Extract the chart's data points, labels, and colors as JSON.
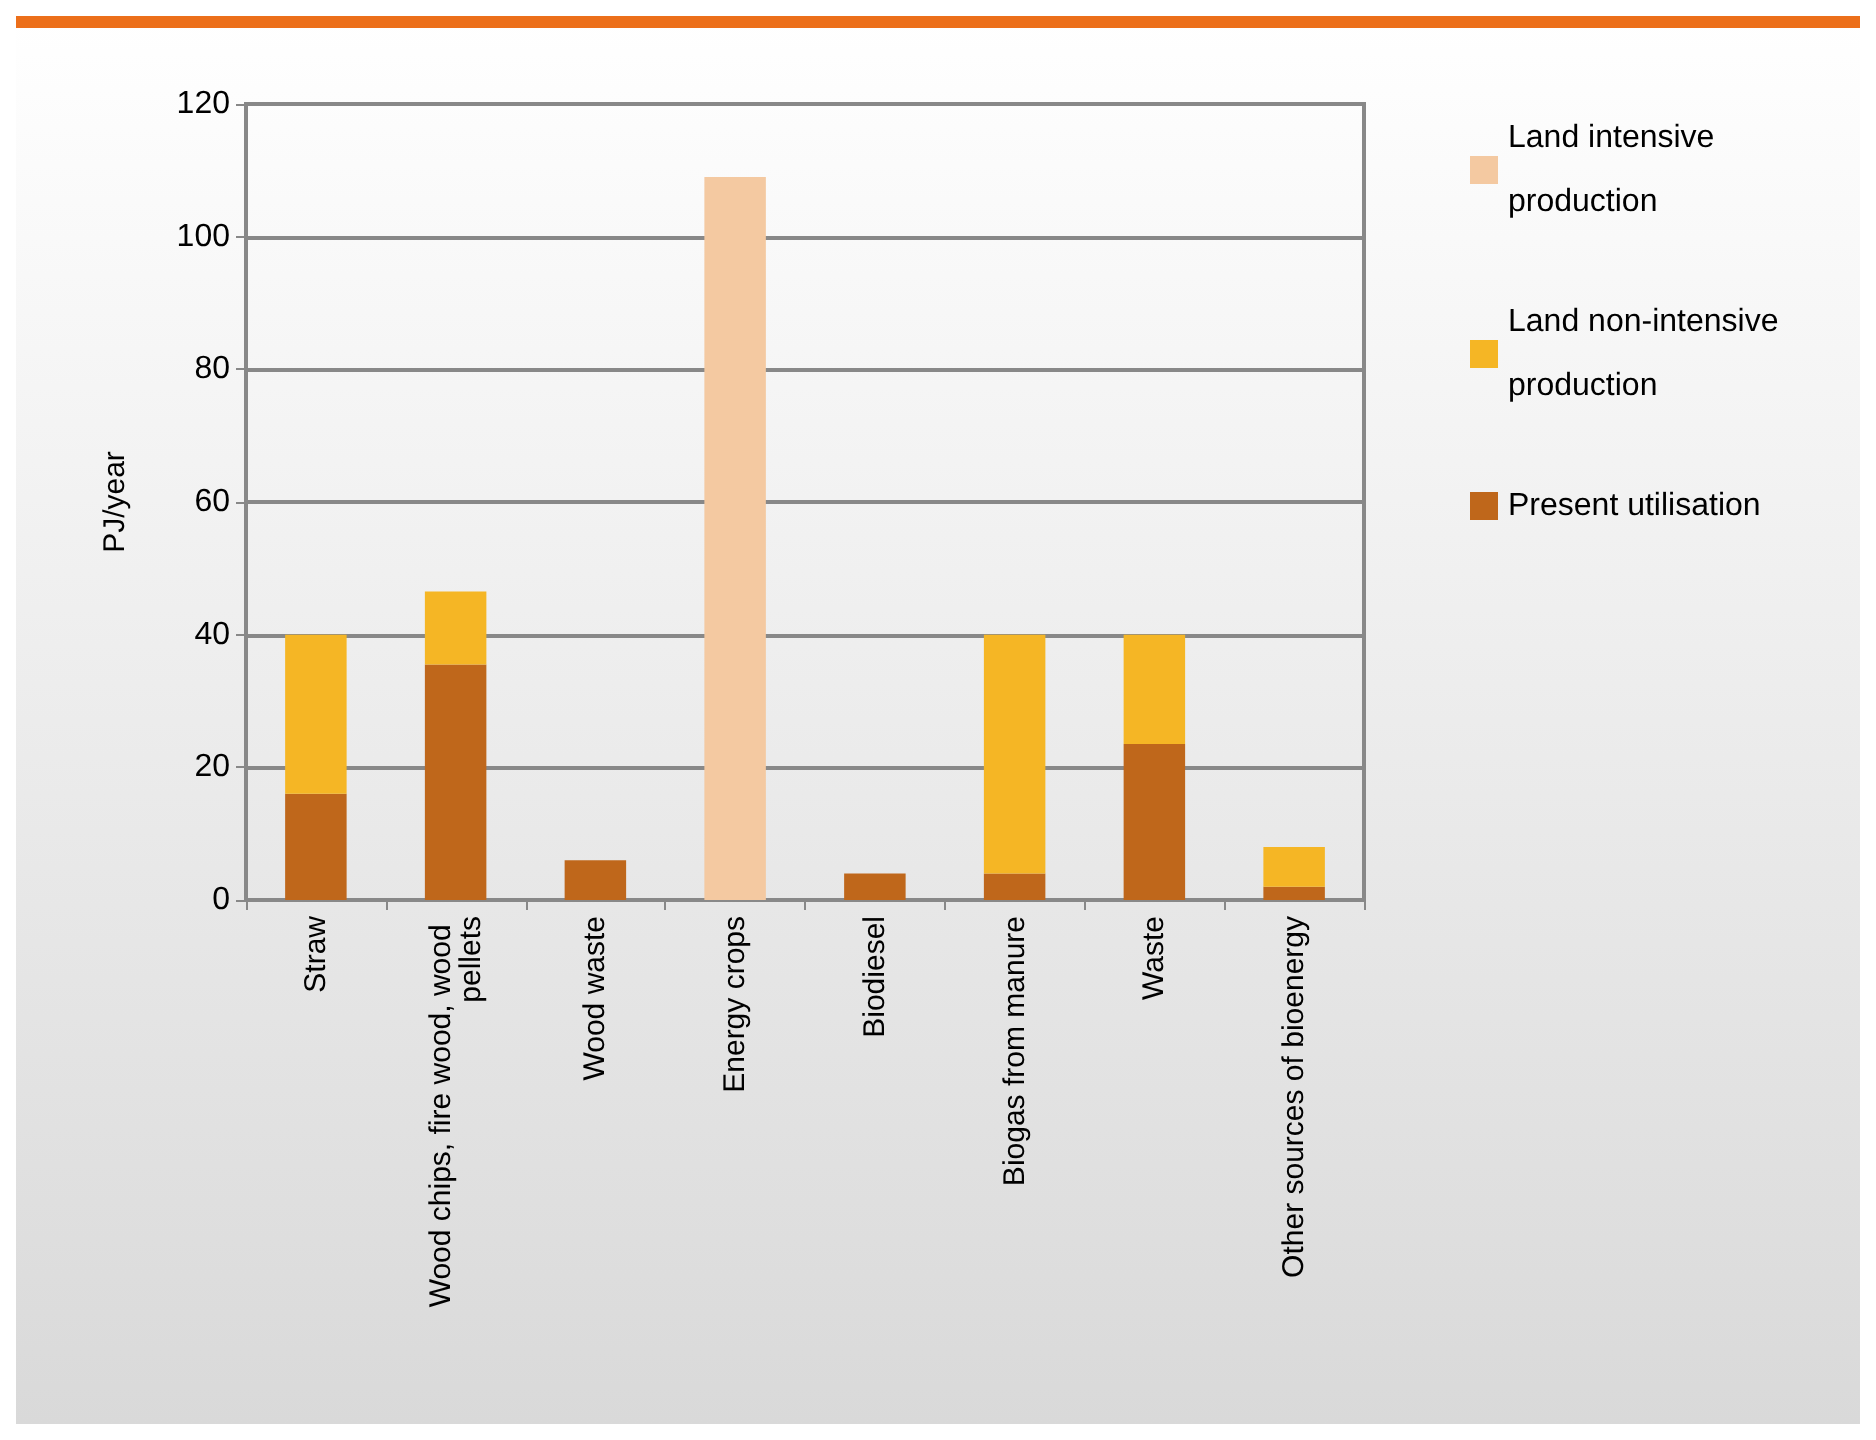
{
  "chart_data": {
    "type": "bar",
    "stacked": true,
    "ylabel": "PJ/year",
    "categories": [
      "Straw",
      "Wood chips, fire wood, wood pellets",
      "Wood waste",
      "Energy crops",
      "Biodiesel",
      "Biogas from manure",
      "Waste",
      "Other sources of bioenergy"
    ],
    "series": [
      {
        "name": "Present utilisation",
        "color": "#bf671b",
        "values": [
          16,
          35.5,
          6,
          0,
          4,
          4,
          23.5,
          2
        ]
      },
      {
        "name": "Land non-intensive production",
        "color": "#f5b625",
        "values": [
          24,
          11,
          0,
          0,
          0,
          36,
          16.5,
          6
        ]
      },
      {
        "name": "Land intensive production",
        "color": "#f4c9a1",
        "values": [
          0,
          0,
          0,
          109,
          0,
          0,
          0,
          0
        ]
      }
    ],
    "ylim": [
      0,
      120
    ],
    "yticks": [
      0,
      20,
      40,
      60,
      80,
      100,
      120
    ],
    "grid": "y",
    "legend": "top right"
  }
}
